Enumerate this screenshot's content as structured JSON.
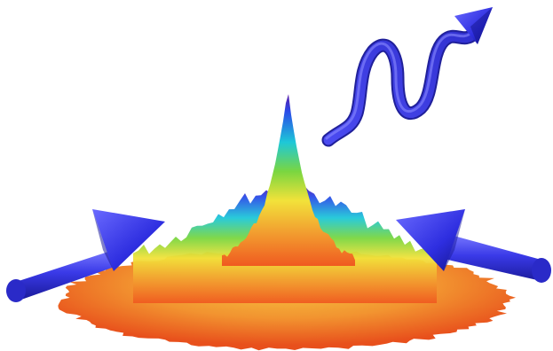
{
  "palette": {
    "background": "#ffffff",
    "arrow_blue": "#3a3ae8",
    "arrow_blue_dark": "#1a1a9a",
    "arrow_blue_light": "#7a7aff",
    "peak_violet": "#5a1aa8",
    "peak_blue": "#2a4ae8",
    "cyan": "#1ec8d8",
    "green": "#7ad640",
    "yellow": "#f2e23a",
    "orange": "#f2a030",
    "red_orange": "#f05a20"
  },
  "icons": {
    "left_beam": "arrow-right-icon",
    "right_beam": "arrow-left-icon",
    "emitted": "wavy-arrow-icon"
  }
}
